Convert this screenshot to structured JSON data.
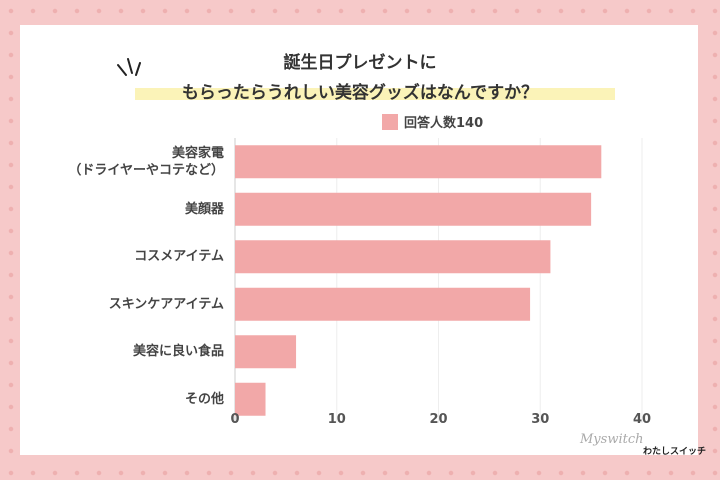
{
  "title_line1": "誕生日プレゼントに",
  "title_line2": "もらったらうれしい美容グッズはなんですか？",
  "chart_data": {
    "type": "bar",
    "orientation": "horizontal",
    "categories": [
      "美容家電",
      "美顔器",
      "コスメアイテム",
      "スキンケアアイテム",
      "美容に良い食品",
      "その他"
    ],
    "category_sublabels": [
      "（ドライヤーやコテなど）",
      "",
      "",
      "",
      "",
      ""
    ],
    "series": [
      {
        "name": "回答人数140",
        "values": [
          36,
          35,
          31,
          29,
          6,
          3
        ],
        "color": "#f2a8a8"
      }
    ],
    "xlim": [
      0,
      40
    ],
    "xticks": [
      "0",
      "10",
      "20",
      "30",
      "40"
    ],
    "grid": true,
    "legend": "top"
  },
  "logo": {
    "script": "Myswitch",
    "name": "わたしスイッチ"
  }
}
